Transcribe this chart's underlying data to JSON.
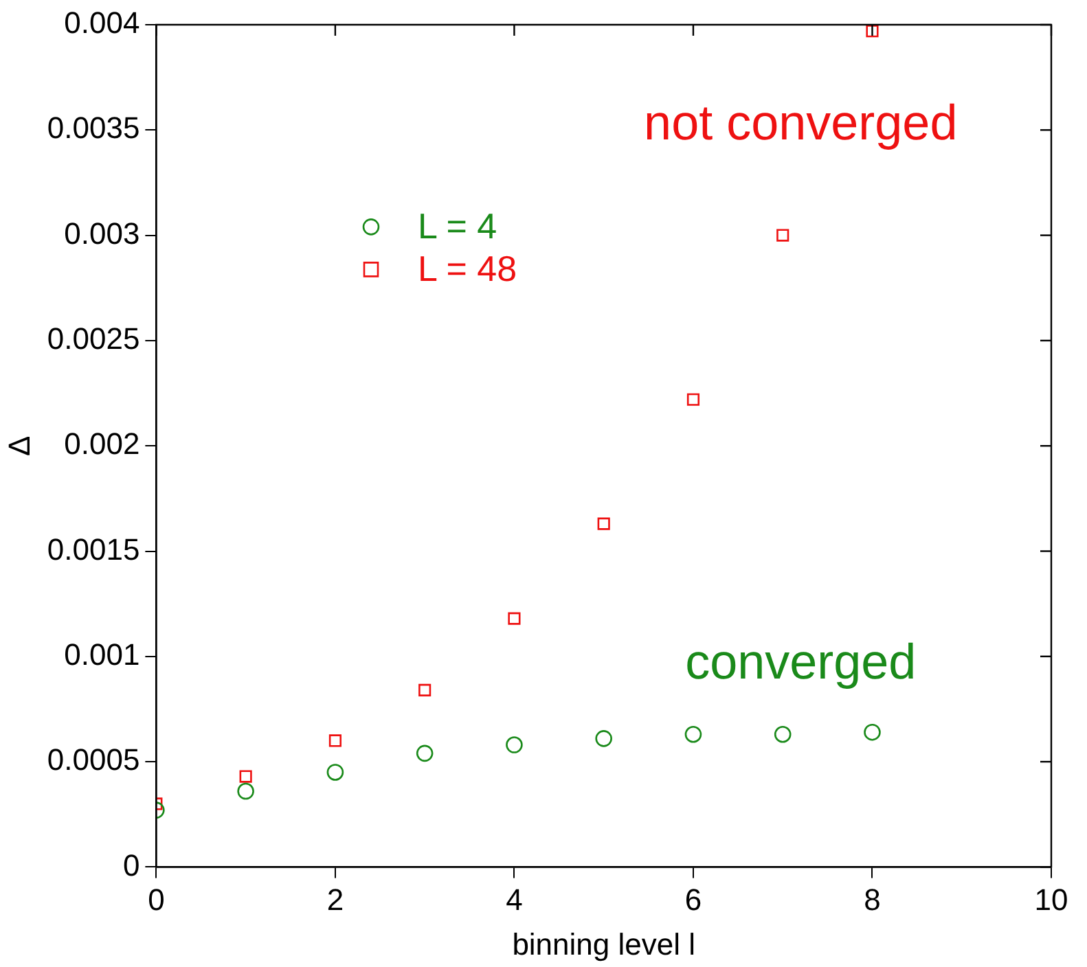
{
  "chart_data": {
    "type": "scatter",
    "xlabel": "binning level l",
    "ylabel": "Δ",
    "x": [
      0,
      1,
      2,
      3,
      4,
      5,
      6,
      7,
      8
    ],
    "series": [
      {
        "name": "L = 4",
        "color": "#1a8a1a",
        "marker": "circle",
        "values": [
          0.00027,
          0.00036,
          0.00045,
          0.00054,
          0.00058,
          0.00061,
          0.00063,
          0.00063,
          0.00064
        ]
      },
      {
        "name": "L = 48",
        "color": "#ee1111",
        "marker": "square",
        "values": [
          0.0003,
          0.00043,
          0.0006,
          0.00084,
          0.00118,
          0.00163,
          0.00222,
          0.003,
          0.00397
        ]
      }
    ],
    "annotations": [
      "converged",
      "not converged"
    ],
    "xlim": [
      0,
      10
    ],
    "xticks": [
      0,
      2,
      4,
      6,
      8,
      10
    ],
    "ylim": [
      0,
      0.004
    ],
    "yticks": [
      0,
      0.0005,
      0.001,
      0.0015,
      0.002,
      0.0025,
      0.003,
      0.0035,
      0.004
    ],
    "grid": false,
    "legend": "top left"
  }
}
